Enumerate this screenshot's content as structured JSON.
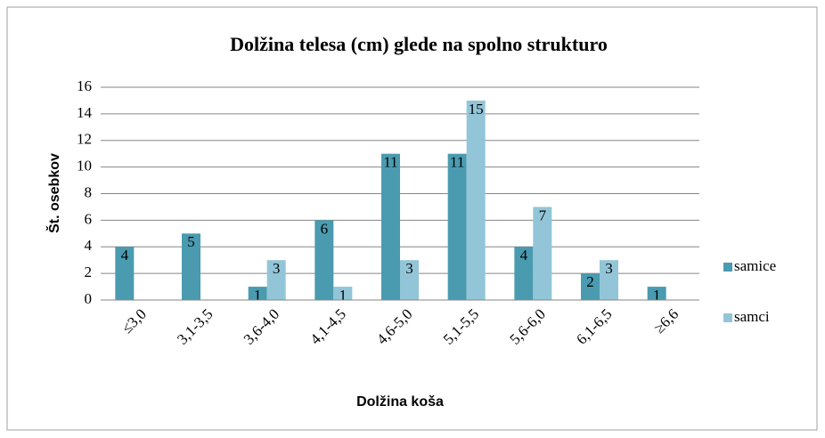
{
  "chart_data": {
    "type": "bar",
    "title": "Dolžina telesa (cm) glede na spolno strukturo",
    "x_label": "Dolžina koša",
    "y_label": "Št. osebkov",
    "categories": [
      "≤3,0",
      "3,1-3,5",
      "3,6-4,0",
      "4,1-4,5",
      "4,6-5,0",
      "5,1-5,5",
      "5,6-6,0",
      "6,1-6,5",
      "≥6,6"
    ],
    "series": [
      {
        "name": "samice",
        "color": "#4a9bb0",
        "values": [
          4,
          5,
          1,
          6,
          11,
          11,
          4,
          2,
          1
        ]
      },
      {
        "name": "samci",
        "color": "#93c5d8",
        "values": [
          0,
          0,
          3,
          1,
          3,
          15,
          7,
          3,
          0
        ]
      }
    ],
    "ylim": [
      0,
      16
    ],
    "yticks": [
      0,
      2,
      4,
      6,
      8,
      10,
      12,
      14,
      16
    ],
    "grid": true,
    "legend": "right"
  }
}
